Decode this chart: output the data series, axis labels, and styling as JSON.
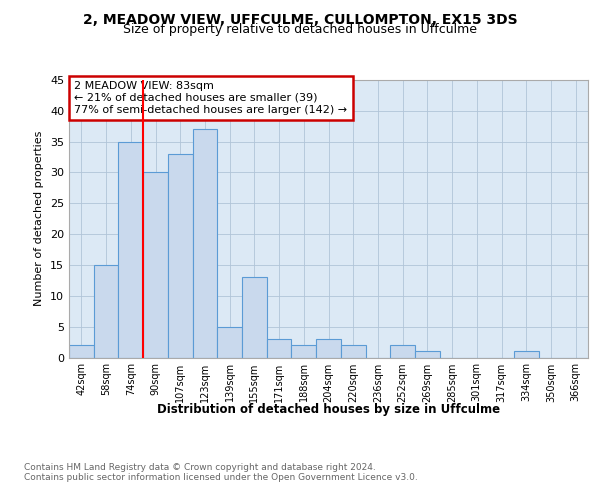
{
  "title": "2, MEADOW VIEW, UFFCULME, CULLOMPTON, EX15 3DS",
  "subtitle": "Size of property relative to detached houses in Uffculme",
  "xlabel": "Distribution of detached houses by size in Uffculme",
  "ylabel": "Number of detached properties",
  "bin_labels": [
    "42sqm",
    "58sqm",
    "74sqm",
    "90sqm",
    "107sqm",
    "123sqm",
    "139sqm",
    "155sqm",
    "171sqm",
    "188sqm",
    "204sqm",
    "220sqm",
    "236sqm",
    "252sqm",
    "269sqm",
    "285sqm",
    "301sqm",
    "317sqm",
    "334sqm",
    "350sqm",
    "366sqm"
  ],
  "bin_values": [
    2,
    15,
    35,
    30,
    33,
    37,
    5,
    13,
    3,
    2,
    3,
    2,
    0,
    2,
    1,
    0,
    0,
    0,
    1,
    0,
    0
  ],
  "bar_color": "#c9d9ed",
  "bar_edge_color": "#5b9bd5",
  "grid_color": "#b0c4d8",
  "redline_x": 2.5,
  "annotation_text": "2 MEADOW VIEW: 83sqm\n← 21% of detached houses are smaller (39)\n77% of semi-detached houses are larger (142) →",
  "annotation_box_color": "#ffffff",
  "annotation_box_edge_color": "#cc0000",
  "ylim": [
    0,
    45
  ],
  "yticks": [
    0,
    5,
    10,
    15,
    20,
    25,
    30,
    35,
    40,
    45
  ],
  "footer_line1": "Contains HM Land Registry data © Crown copyright and database right 2024.",
  "footer_line2": "Contains public sector information licensed under the Open Government Licence v3.0.",
  "background_color": "#ffffff",
  "plot_bg_color": "#dce9f5"
}
